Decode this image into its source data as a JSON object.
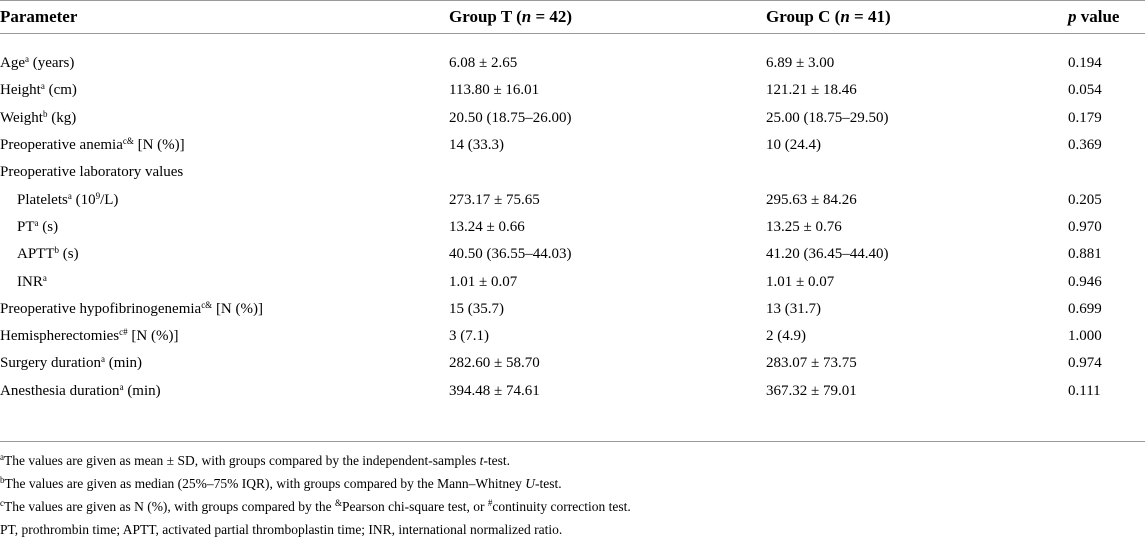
{
  "table": {
    "header": [
      [
        "Parameter"
      ],
      [
        "Group T (",
        {
          "i": "n"
        },
        " = 42)"
      ],
      [
        "Group C (",
        {
          "i": "n"
        },
        " = 41)"
      ],
      [
        {
          "i": "p"
        },
        " value"
      ]
    ],
    "rows": [
      {
        "indent": false,
        "cells": [
          [
            "Age",
            {
              "sup": "a"
            },
            " (years)"
          ],
          "6.08 ± 2.65",
          "6.89 ± 3.00",
          "0.194"
        ]
      },
      {
        "indent": false,
        "cells": [
          [
            "Height",
            {
              "sup": "a"
            },
            " (cm)"
          ],
          "113.80 ± 16.01",
          "121.21 ± 18.46",
          "0.054"
        ]
      },
      {
        "indent": false,
        "cells": [
          [
            "Weight",
            {
              "sup": "b"
            },
            " (kg)"
          ],
          "20.50 (18.75–26.00)",
          "25.00 (18.75–29.50)",
          "0.179"
        ]
      },
      {
        "indent": false,
        "cells": [
          [
            "Preoperative anemia",
            {
              "sup": "c&"
            },
            " [N (%)]"
          ],
          "14 (33.3)",
          "10 (24.4)",
          "0.369"
        ]
      },
      {
        "indent": false,
        "cells": [
          [
            "Preoperative laboratory values"
          ]
        ]
      },
      {
        "indent": true,
        "cells": [
          [
            "Platelets",
            {
              "sup": "a"
            },
            " (10",
            {
              "sup": "9"
            },
            "/L)"
          ],
          "273.17 ± 75.65",
          "295.63 ± 84.26",
          "0.205"
        ]
      },
      {
        "indent": true,
        "cells": [
          [
            "PT",
            {
              "sup": "a"
            },
            " (s)"
          ],
          "13.24 ± 0.66",
          "13.25 ± 0.76",
          "0.970"
        ]
      },
      {
        "indent": true,
        "cells": [
          [
            "APTT",
            {
              "sup": "b"
            },
            " (s)"
          ],
          "40.50 (36.55–44.03)",
          "41.20 (36.45–44.40)",
          "0.881"
        ]
      },
      {
        "indent": true,
        "cells": [
          [
            "INR",
            {
              "sup": "a"
            }
          ],
          "1.01 ± 0.07",
          "1.01 ± 0.07",
          "0.946"
        ]
      },
      {
        "indent": false,
        "cells": [
          [
            "Preoperative hypofibrinogenemia",
            {
              "sup": "c&"
            },
            " [N (%)]"
          ],
          "15 (35.7)",
          "13 (31.7)",
          "0.699"
        ]
      },
      {
        "indent": false,
        "cells": [
          [
            "Hemispherectomies",
            {
              "sup": "c#"
            },
            " [N (%)]"
          ],
          "3 (7.1)",
          "2 (4.9)",
          "1.000"
        ]
      },
      {
        "indent": false,
        "cells": [
          [
            "Surgery duration",
            {
              "sup": "a"
            },
            " (min)"
          ],
          "282.60 ± 58.70",
          "283.07 ± 73.75",
          "0.974"
        ]
      },
      {
        "indent": false,
        "cells": [
          [
            "Anesthesia duration",
            {
              "sup": "a"
            },
            " (min)"
          ],
          "394.48 ± 74.61",
          "367.32 ± 79.01",
          "0.111"
        ]
      }
    ]
  },
  "footnotes": [
    [
      {
        "sup": "a"
      },
      "The values are given as mean ± SD, with groups compared by the independent-samples ",
      {
        "i": "t"
      },
      "-test."
    ],
    [
      {
        "sup": "b"
      },
      "The values are given as median (25%–75% IQR), with groups compared by the Mann–Whitney ",
      {
        "i": "U"
      },
      "-test."
    ],
    [
      {
        "sup": "c"
      },
      "The values are given as N (%), with groups compared by the ",
      {
        "sup": "&"
      },
      "Pearson chi-square test, or ",
      {
        "sup": "#"
      },
      "continuity correction test."
    ],
    [
      "PT, prothrombin time; APTT, activated partial thromboplastin time; INR, international normalized ratio."
    ]
  ]
}
